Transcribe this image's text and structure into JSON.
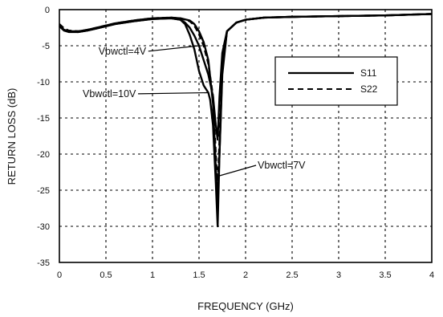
{
  "chart_data": {
    "type": "line",
    "xlabel": "FREQUENCY (GHz)",
    "ylabel": "RETURN LOSS (dB)",
    "xlim": [
      0,
      4
    ],
    "ylim": [
      -35,
      0
    ],
    "xticks": [
      0,
      0.5,
      1,
      1.5,
      2,
      2.5,
      3,
      3.5,
      4
    ],
    "yticks": [
      0,
      -5,
      -10,
      -15,
      -20,
      -25,
      -30,
      -35
    ],
    "xtick_labels": [
      "0",
      "0.5",
      "1",
      "1.5",
      "2",
      "2.5",
      "3",
      "3.5",
      "4"
    ],
    "ytick_labels": [
      "0",
      "-5",
      "-10",
      "-15",
      "-20",
      "-25",
      "-30",
      "-35"
    ],
    "grid": "dashed",
    "legend": {
      "position": "top-right",
      "entries": [
        {
          "label": "S11",
          "style": "solid"
        },
        {
          "label": "S22",
          "style": "dashed"
        }
      ]
    },
    "series": [
      {
        "style": "solid",
        "x": [
          0,
          0.05,
          0.1,
          0.2,
          0.3,
          0.4,
          0.5,
          0.6,
          0.8,
          1.0,
          1.2,
          1.3,
          1.35,
          1.4,
          1.45,
          1.5,
          1.55,
          1.6,
          1.65,
          1.68,
          1.7,
          1.72,
          1.75,
          1.8,
          1.9,
          2.0,
          2.2,
          2.5,
          3.0,
          3.5,
          4.0
        ],
        "y": [
          -2.2,
          -2.8,
          -3.0,
          -3.1,
          -2.9,
          -2.6,
          -2.3,
          -2.0,
          -1.6,
          -1.3,
          -1.2,
          -1.4,
          -1.8,
          -2.5,
          -3.6,
          -5.0,
          -7.0,
          -9.0,
          -12.0,
          -16.0,
          -18.0,
          -12.0,
          -6.0,
          -3.0,
          -1.8,
          -1.4,
          -1.1,
          -1.0,
          -0.9,
          -0.8,
          -0.6
        ]
      },
      {
        "style": "solid",
        "x": [
          0,
          0.05,
          0.1,
          0.2,
          0.3,
          0.4,
          0.5,
          0.6,
          0.8,
          1.0,
          1.2,
          1.3,
          1.35,
          1.4,
          1.45,
          1.5,
          1.55,
          1.6,
          1.62,
          1.65,
          1.68,
          1.7,
          1.72,
          1.75,
          1.8,
          1.9,
          2.0,
          2.2,
          2.5,
          3.0,
          3.5,
          4.0
        ],
        "y": [
          -2.3,
          -2.9,
          -3.1,
          -3.1,
          -2.9,
          -2.6,
          -2.3,
          -2.0,
          -1.6,
          -1.3,
          -1.2,
          -1.4,
          -2.0,
          -3.5,
          -5.5,
          -8.5,
          -10.5,
          -11.5,
          -12.5,
          -16.0,
          -24.0,
          -30.0,
          -20.0,
          -8.0,
          -3.0,
          -1.8,
          -1.4,
          -1.1,
          -1.0,
          -0.9,
          -0.8,
          -0.6
        ]
      },
      {
        "style": "solid",
        "x": [
          0,
          0.05,
          0.1,
          0.2,
          0.3,
          0.4,
          0.5,
          0.6,
          0.8,
          1.0,
          1.2,
          1.3,
          1.4,
          1.45,
          1.5,
          1.55,
          1.6,
          1.65,
          1.68,
          1.7,
          1.72,
          1.75,
          1.8,
          1.9,
          2.0,
          2.2,
          2.5,
          3.0,
          3.5,
          4.0
        ],
        "y": [
          -2.2,
          -2.8,
          -3.0,
          -3.0,
          -2.8,
          -2.5,
          -2.2,
          -1.9,
          -1.5,
          -1.2,
          -1.1,
          -1.2,
          -1.5,
          -2.0,
          -3.0,
          -4.5,
          -7.0,
          -13.0,
          -22.0,
          -27.0,
          -20.0,
          -9.0,
          -3.0,
          -1.8,
          -1.4,
          -1.1,
          -1.0,
          -0.9,
          -0.8,
          -0.6
        ]
      },
      {
        "style": "dashed",
        "x": [
          0,
          0.05,
          0.1,
          0.2,
          0.3,
          0.4,
          0.5,
          0.6,
          0.8,
          1.0,
          1.2,
          1.3,
          1.4,
          1.45,
          1.5,
          1.55,
          1.6,
          1.65,
          1.68,
          1.7,
          1.72,
          1.75,
          1.8,
          1.9,
          2.0,
          2.2,
          2.5,
          3.0,
          3.5,
          4.0
        ],
        "y": [
          -2.0,
          -2.6,
          -2.9,
          -3.0,
          -2.8,
          -2.5,
          -2.2,
          -1.9,
          -1.5,
          -1.2,
          -1.1,
          -1.2,
          -1.6,
          -2.2,
          -3.4,
          -5.0,
          -7.5,
          -12.0,
          -20.0,
          -25.0,
          -18.0,
          -8.0,
          -3.0,
          -1.8,
          -1.4,
          -1.1,
          -1.0,
          -0.9,
          -0.8,
          -0.6
        ]
      }
    ],
    "annotations": [
      {
        "text": "Vbwctl=4V",
        "x": 0.42,
        "y": -6.2,
        "target_x": 1.5,
        "target_y": -5.0
      },
      {
        "text": "Vbwctl=10V",
        "x": 0.25,
        "y": -12.1,
        "target_x": 1.6,
        "target_y": -11.5
      },
      {
        "text": "Vbwctl=7V",
        "x": 2.13,
        "y": -22.0,
        "target_x": 1.72,
        "target_y": -23.0
      }
    ]
  }
}
